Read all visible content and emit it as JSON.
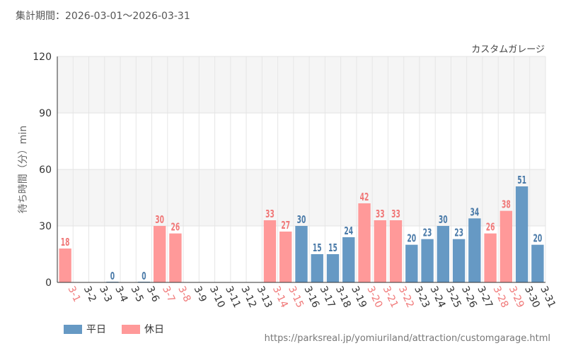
{
  "header": {
    "period_label": "集計期間：2026-03-01～2026-03-31"
  },
  "footer": {
    "source_url": "https://parksreal.jp/yomiuriland/attraction/customgarage.html"
  },
  "legend": {
    "items": [
      {
        "key": "weekday",
        "label": "平日",
        "color": "#6699c4"
      },
      {
        "key": "holiday",
        "label": "休日",
        "color": "#ff9999"
      }
    ]
  },
  "chart_data": {
    "type": "bar",
    "title": "カスタムガレージ",
    "xlabel": "",
    "ylabel": "待ち時間（分）min",
    "ylim": [
      0,
      120
    ],
    "yticks": [
      0,
      30,
      60,
      90,
      120
    ],
    "grid": true,
    "legend_position": "bottom-left",
    "colors": {
      "weekday_bar": "#6699c4",
      "weekday_label": "#4a7aa8",
      "holiday_bar": "#ff9999",
      "holiday_label": "#f07878",
      "band": "#f5f5f5"
    },
    "categories": [
      "3-1",
      "3-2",
      "3-3",
      "3-4",
      "3-5",
      "3-6",
      "3-7",
      "3-8",
      "3-9",
      "3-10",
      "3-11",
      "3-12",
      "3-13",
      "3-14",
      "3-15",
      "3-16",
      "3-17",
      "3-18",
      "3-19",
      "3-20",
      "3-21",
      "3-22",
      "3-23",
      "3-24",
      "3-25",
      "3-26",
      "3-27",
      "3-28",
      "3-29",
      "3-30",
      "3-31"
    ],
    "values": [
      18,
      null,
      null,
      0,
      null,
      0,
      30,
      26,
      null,
      null,
      null,
      null,
      null,
      33,
      27,
      30,
      15,
      15,
      24,
      42,
      33,
      33,
      20,
      23,
      30,
      23,
      34,
      26,
      38,
      51,
      20
    ],
    "day_types": [
      "holiday",
      "weekday",
      "weekday",
      "weekday",
      "weekday",
      "weekday",
      "holiday",
      "holiday",
      "weekday",
      "weekday",
      "weekday",
      "weekday",
      "weekday",
      "holiday",
      "holiday",
      "weekday",
      "weekday",
      "weekday",
      "weekday",
      "holiday",
      "holiday",
      "holiday",
      "weekday",
      "weekday",
      "weekday",
      "weekday",
      "weekday",
      "holiday",
      "holiday",
      "weekday",
      "weekday"
    ]
  }
}
